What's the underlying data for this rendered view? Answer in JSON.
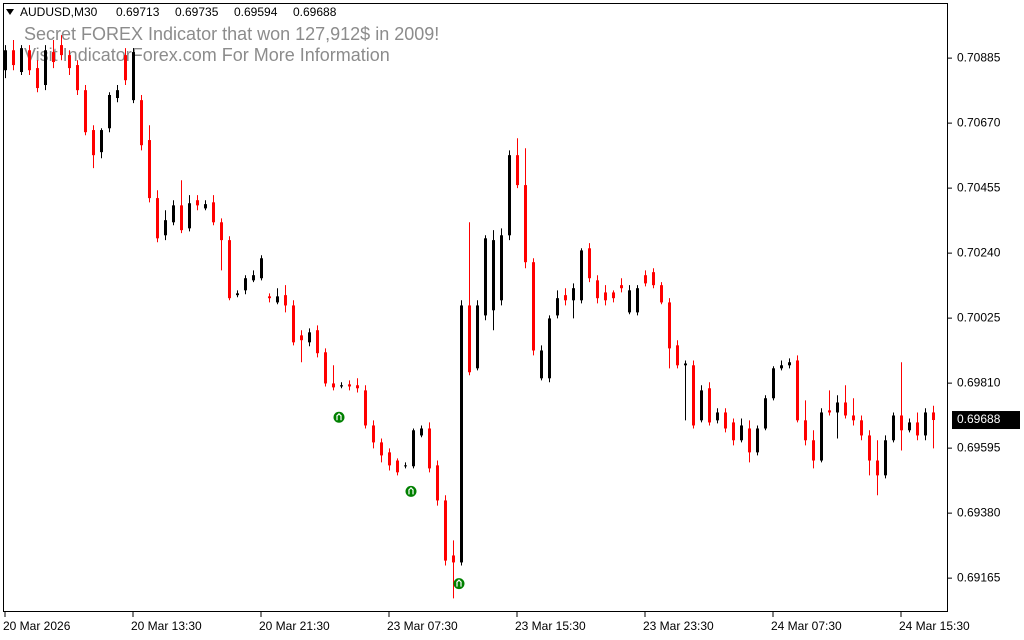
{
  "chart_data": {
    "type": "candlestick",
    "symbol": "AUDUSD,M30",
    "annotations": [
      "Secret FOREX Indicator that won 127,912$ in 2009!",
      "Visit IndicatorForex.com For More Information"
    ],
    "categories": [
      "20 Mar 2026",
      null,
      null,
      null,
      null,
      null,
      null,
      null,
      null,
      null,
      null,
      null,
      null,
      null,
      null,
      null,
      "20 Mar 13:30",
      null,
      null,
      null,
      null,
      null,
      null,
      null,
      null,
      null,
      null,
      null,
      null,
      null,
      null,
      null,
      "20 Mar 21:30",
      null,
      null,
      null,
      null,
      null,
      null,
      null,
      null,
      null,
      null,
      null,
      null,
      null,
      null,
      null,
      "23 Mar 07:30",
      null,
      null,
      null,
      null,
      null,
      null,
      null,
      null,
      null,
      null,
      null,
      null,
      null,
      null,
      null,
      "23 Mar 15:30",
      null,
      null,
      null,
      null,
      null,
      null,
      null,
      null,
      null,
      null,
      null,
      null,
      null,
      null,
      null,
      "23 Mar 23:30",
      null,
      null,
      null,
      null,
      null,
      null,
      null,
      null,
      null,
      null,
      null,
      null,
      null,
      null,
      null,
      "24 Mar 07:30",
      null,
      null,
      null,
      null,
      null,
      null,
      null,
      null,
      null,
      null,
      null,
      null,
      null,
      null,
      null,
      "24 Mar 15:30",
      null,
      null,
      null,
      null
    ],
    "open": [
      0.70845,
      0.70911,
      0.70839,
      0.70911,
      0.70852,
      0.70796,
      0.70905,
      0.70928,
      0.70895,
      0.70862,
      0.70779,
      0.70647,
      0.70574,
      0.70653,
      0.70753,
      0.70895,
      0.70746,
      0.70746,
      0.70614,
      0.70422,
      0.70299,
      0.70342,
      0.70398,
      0.70322,
      0.70415,
      0.70388,
      0.70408,
      0.70342,
      0.70283,
      0.70101,
      0.70117,
      0.7015,
      0.70157,
      0.70097,
      0.70077,
      0.70101,
      0.70067,
      0.69968,
      0.69945,
      0.69985,
      0.69912,
      0.69809,
      0.69799,
      0.69806,
      0.69803,
      0.69786,
      0.6967,
      0.69614,
      0.69581,
      0.69554,
      0.69535,
      0.69535,
      0.69637,
      0.6966,
      0.69538,
      0.69422,
      0.6924,
      0.69217,
      0.70067,
      0.69859,
      0.70034,
      0.70051,
      0.70084,
      0.70299,
      0.70564,
      0.70465,
      0.7021,
      0.69826,
      0.69826,
      0.70034,
      0.70101,
      0.70084,
      0.70084,
      0.70256,
      0.7015,
      0.7011,
      0.7011,
      0.70134,
      0.70044,
      0.70044,
      0.70167,
      0.70177,
      0.70134,
      0.70077,
      0.69935,
      0.69869,
      0.69869,
      0.69687,
      0.69793,
      0.69687,
      0.69713,
      0.6968,
      0.69621,
      0.6966,
      0.69581,
      0.6966,
      0.6976,
      0.69859,
      0.69869,
      0.69885,
      0.69687,
      0.69621,
      0.69554,
      0.6972,
      0.69713,
      0.69746,
      0.69703,
      0.69687,
      0.69637,
      0.69554,
      0.69505,
      0.69621,
      0.69703,
      0.69654,
      0.6968,
      0.69637,
      0.69713
    ],
    "high": [
      0.70928,
      0.70945,
      0.70928,
      0.70928,
      0.70878,
      0.70928,
      0.70945,
      0.70961,
      0.70911,
      0.70878,
      0.70796,
      0.70663,
      0.70653,
      0.70772,
      0.70796,
      0.70918,
      0.70918,
      0.70763,
      0.70663,
      0.70448,
      0.70382,
      0.70415,
      0.70481,
      0.70432,
      0.70432,
      0.70415,
      0.70432,
      0.70355,
      0.70296,
      0.70117,
      0.70167,
      0.70183,
      0.70233,
      0.70107,
      0.70124,
      0.70134,
      0.70084,
      0.69985,
      0.69991,
      0.70001,
      0.69925,
      0.69869,
      0.69813,
      0.69819,
      0.69826,
      0.69803,
      0.69687,
      0.69627,
      0.69594,
      0.69561,
      0.69548,
      0.6966,
      0.6967,
      0.6968,
      0.69554,
      0.69439,
      0.6929,
      0.70084,
      0.70342,
      0.70084,
      0.70299,
      0.70316,
      0.70322,
      0.7058,
      0.7062,
      0.70587,
      0.70223,
      0.69935,
      0.70034,
      0.70117,
      0.70124,
      0.7014,
      0.70256,
      0.70273,
      0.70167,
      0.70134,
      0.70117,
      0.70157,
      0.70134,
      0.70134,
      0.70183,
      0.7019,
      0.70144,
      0.70091,
      0.69952,
      0.69885,
      0.69885,
      0.69803,
      0.69813,
      0.69727,
      0.69727,
      0.69693,
      0.69693,
      0.69687,
      0.6967,
      0.6977,
      0.69866,
      0.69885,
      0.69892,
      0.69902,
      0.69753,
      0.69654,
      0.69727,
      0.69786,
      0.6977,
      0.69803,
      0.6976,
      0.69703,
      0.69654,
      0.69621,
      0.69637,
      0.69713,
      0.69879,
      0.69693,
      0.69713,
      0.69727,
      0.69735
    ],
    "low": [
      0.70819,
      0.70845,
      0.70829,
      0.70829,
      0.70772,
      0.70779,
      0.70852,
      0.70878,
      0.70829,
      0.70763,
      0.7063,
      0.70521,
      0.70554,
      0.7064,
      0.70739,
      0.70796,
      0.70736,
      0.7058,
      0.70408,
      0.70276,
      0.70283,
      0.70332,
      0.70306,
      0.70312,
      0.70382,
      0.70382,
      0.70332,
      0.70183,
      0.70084,
      0.70094,
      0.70104,
      0.70144,
      0.7015,
      0.70077,
      0.70071,
      0.70044,
      0.69935,
      0.69879,
      0.69932,
      0.69895,
      0.69799,
      0.69786,
      0.69793,
      0.69786,
      0.69779,
      0.6966,
      0.69594,
      0.69548,
      0.69521,
      0.69505,
      0.69528,
      0.69528,
      0.69631,
      0.69515,
      0.69405,
      0.69207,
      0.69098,
      0.69207,
      0.69836,
      0.69852,
      0.70018,
      0.69985,
      0.70067,
      0.70283,
      0.70455,
      0.7019,
      0.69902,
      0.69819,
      0.69813,
      0.70024,
      0.70067,
      0.70024,
      0.70074,
      0.70144,
      0.70074,
      0.70067,
      0.70077,
      0.7011,
      0.70038,
      0.70034,
      0.7013,
      0.70124,
      0.70071,
      0.69859,
      0.69859,
      0.69687,
      0.6966,
      0.6968,
      0.6967,
      0.69677,
      0.69647,
      0.69604,
      0.69614,
      0.69548,
      0.69571,
      0.69654,
      0.69753,
      0.69852,
      0.69859,
      0.6968,
      0.69604,
      0.69528,
      0.69548,
      0.69703,
      0.69627,
      0.69693,
      0.6967,
      0.69621,
      0.69505,
      0.69439,
      0.69495,
      0.69614,
      0.69587,
      0.69647,
      0.69621,
      0.69621,
      0.69594
    ],
    "close": [
      0.70911,
      0.70862,
      0.70918,
      0.70845,
      0.70786,
      0.70911,
      0.70872,
      0.70895,
      0.70852,
      0.70779,
      0.7064,
      0.70564,
      0.70647,
      0.70763,
      0.70779,
      0.70812,
      0.70905,
      0.70597,
      0.70422,
      0.70289,
      0.70349,
      0.70398,
      0.70316,
      0.70405,
      0.70398,
      0.70402,
      0.70342,
      0.70283,
      0.70091,
      0.70107,
      0.70157,
      0.70167,
      0.70223,
      0.70091,
      0.70097,
      0.70067,
      0.69945,
      0.69952,
      0.69978,
      0.69909,
      0.69809,
      0.69796,
      0.69803,
      0.69799,
      0.69793,
      0.6967,
      0.69614,
      0.69571,
      0.69538,
      0.69515,
      0.69538,
      0.69654,
      0.6966,
      0.69528,
      0.69422,
      0.69223,
      0.69217,
      0.70067,
      0.69846,
      0.70067,
      0.70289,
      0.70283,
      0.70299,
      0.70564,
      0.70465,
      0.7021,
      0.69918,
      0.69918,
      0.70024,
      0.70091,
      0.70084,
      0.70124,
      0.70249,
      0.70157,
      0.70091,
      0.70084,
      0.70091,
      0.70124,
      0.70117,
      0.70124,
      0.7014,
      0.70134,
      0.70077,
      0.69925,
      0.69869,
      0.69875,
      0.6967,
      0.69786,
      0.6968,
      0.69713,
      0.6966,
      0.69621,
      0.6967,
      0.69581,
      0.6966,
      0.6976,
      0.69859,
      0.69869,
      0.69879,
      0.69687,
      0.69621,
      0.69554,
      0.69713,
      0.69713,
      0.69746,
      0.69703,
      0.69687,
      0.69637,
      0.69554,
      0.69505,
      0.69621,
      0.69703,
      0.69654,
      0.6968,
      0.69637,
      0.69713,
      0.69688
    ],
    "colors": {
      "up": "#000000",
      "down": "#ff0000"
    },
    "signals": {
      "x": [
        42,
        51,
        57
      ],
      "values": [
        0.69697,
        0.69452,
        0.69147
      ],
      "color": "#008000"
    },
    "ylim": [
      0.69053,
      0.71064
    ],
    "yticks": [
      0.70885,
      {
        "value": 0.7067,
        "label": "0.70670"
      },
      0.70455,
      {
        "value": 0.7024,
        "label": "0.70240"
      },
      0.70025,
      {
        "value": 0.6981,
        "label": "0.69810"
      },
      0.69595,
      {
        "value": 0.6938,
        "label": "0.69380"
      },
      0.69165
    ],
    "grid": false
  }
}
